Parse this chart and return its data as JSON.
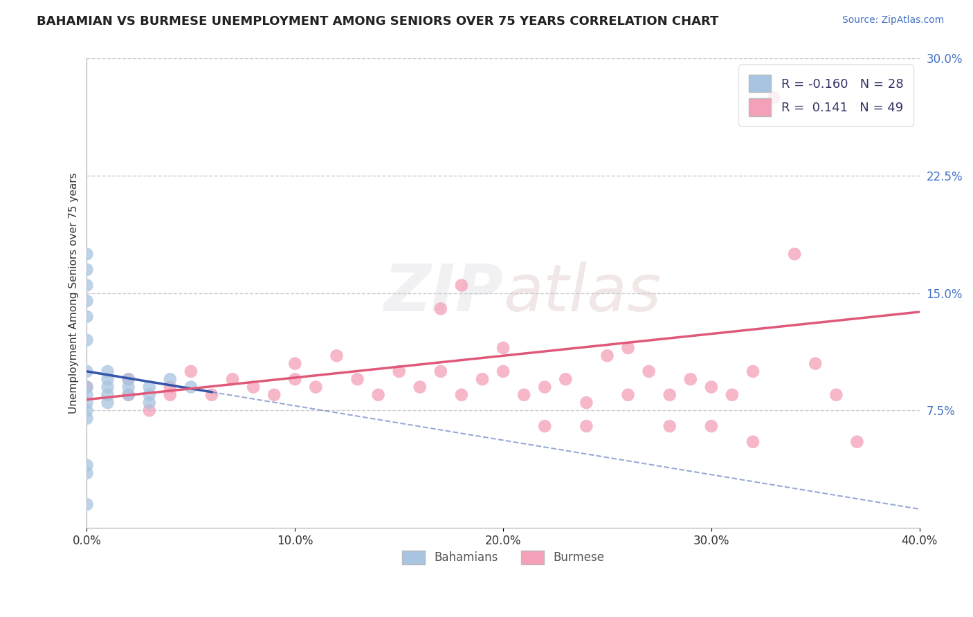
{
  "title": "BAHAMIAN VS BURMESE UNEMPLOYMENT AMONG SENIORS OVER 75 YEARS CORRELATION CHART",
  "source": "Source: ZipAtlas.com",
  "ylabel": "Unemployment Among Seniors over 75 years",
  "xlim": [
    0.0,
    0.4
  ],
  "ylim": [
    0.0,
    0.3
  ],
  "xticks": [
    0.0,
    0.1,
    0.2,
    0.3,
    0.4
  ],
  "yticks": [
    0.075,
    0.15,
    0.225,
    0.3
  ],
  "xtick_labels": [
    "0.0%",
    "10.0%",
    "20.0%",
    "30.0%",
    "40.0%"
  ],
  "ytick_labels": [
    "7.5%",
    "15.0%",
    "22.5%",
    "30.0%"
  ],
  "bahamian_color": "#a8c4e0",
  "burmese_color": "#f4a0b8",
  "bahamian_line_color": "#3355aa",
  "burmese_line_color": "#e05878",
  "R_bahamian": -0.16,
  "N_bahamian": 28,
  "R_burmese": 0.141,
  "N_burmese": 49,
  "watermark_zip": "ZIP",
  "watermark_atlas": "atlas",
  "bahamian_x": [
    0.0,
    0.0,
    0.0,
    0.0,
    0.0,
    0.0,
    0.0,
    0.0,
    0.0,
    0.0,
    0.0,
    0.0,
    0.01,
    0.01,
    0.01,
    0.01,
    0.01,
    0.02,
    0.02,
    0.02,
    0.03,
    0.03,
    0.03,
    0.04,
    0.05,
    0.0,
    0.0,
    0.0
  ],
  "bahamian_y": [
    0.175,
    0.165,
    0.155,
    0.145,
    0.135,
    0.12,
    0.1,
    0.09,
    0.085,
    0.08,
    0.075,
    0.07,
    0.1,
    0.095,
    0.09,
    0.085,
    0.08,
    0.095,
    0.09,
    0.085,
    0.09,
    0.085,
    0.08,
    0.095,
    0.09,
    0.04,
    0.035,
    0.015
  ],
  "burmese_x": [
    0.0,
    0.02,
    0.02,
    0.03,
    0.04,
    0.04,
    0.05,
    0.06,
    0.07,
    0.08,
    0.09,
    0.1,
    0.1,
    0.11,
    0.12,
    0.13,
    0.14,
    0.15,
    0.16,
    0.17,
    0.18,
    0.19,
    0.2,
    0.21,
    0.22,
    0.23,
    0.24,
    0.25,
    0.26,
    0.27,
    0.28,
    0.29,
    0.3,
    0.31,
    0.32,
    0.33,
    0.34,
    0.35,
    0.36,
    0.37,
    0.17,
    0.18,
    0.2,
    0.22,
    0.24,
    0.26,
    0.28,
    0.3,
    0.32
  ],
  "burmese_y": [
    0.09,
    0.085,
    0.095,
    0.075,
    0.09,
    0.085,
    0.1,
    0.085,
    0.095,
    0.09,
    0.085,
    0.095,
    0.105,
    0.09,
    0.11,
    0.095,
    0.085,
    0.1,
    0.09,
    0.1,
    0.085,
    0.095,
    0.1,
    0.085,
    0.09,
    0.095,
    0.08,
    0.11,
    0.085,
    0.1,
    0.085,
    0.095,
    0.09,
    0.085,
    0.1,
    0.275,
    0.175,
    0.105,
    0.085,
    0.055,
    0.14,
    0.155,
    0.115,
    0.065,
    0.065,
    0.115,
    0.065,
    0.065,
    0.055
  ]
}
